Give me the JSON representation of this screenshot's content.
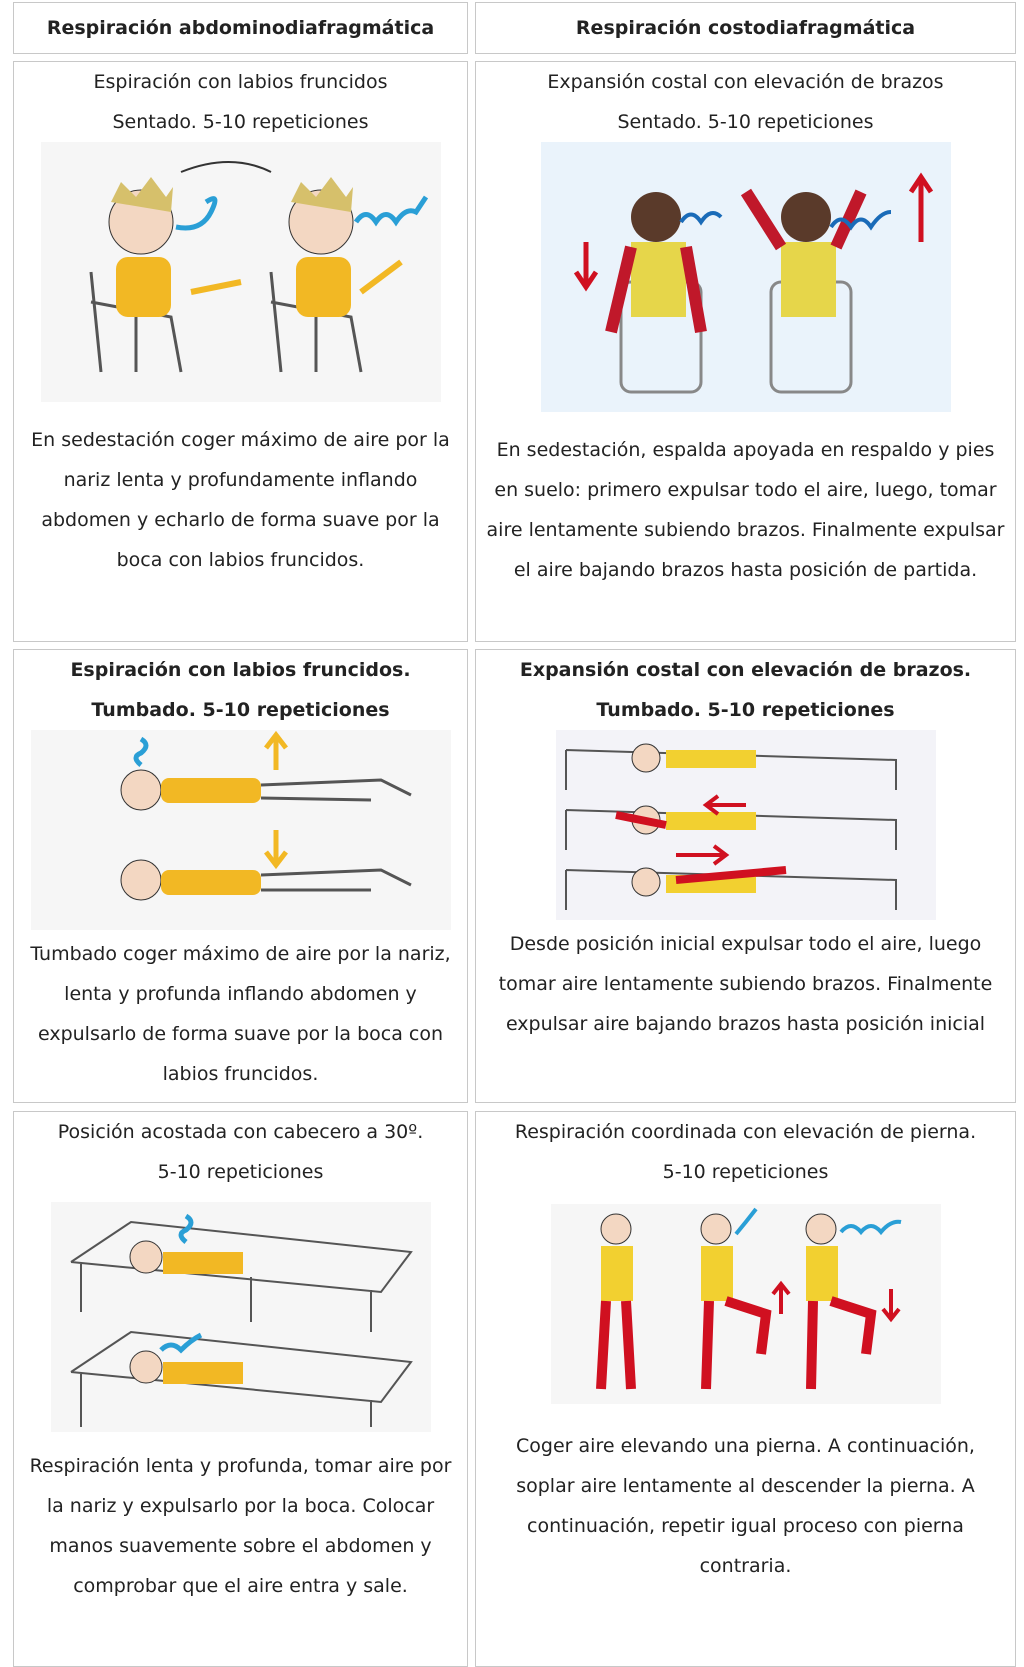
{
  "table": {
    "headers": [
      "Respiración abdominodiafragmática",
      "Respiración costodiafragmática"
    ],
    "rows": [
      [
        {
          "heading": [
            "Espiración con labios fruncidos",
            "Sentado. 5-10 repeticiones"
          ],
          "description": "En sedestación coger máximo de aire por la nariz lenta y profundamente inflando abdomen y echarlo de forma suave por la boca con labios fruncidos."
        },
        {
          "heading": [
            "Expansión costal con elevación de brazos",
            "Sentado. 5-10 repeticiones"
          ],
          "description": "En sedestación, espalda apoyada en respaldo y pies en suelo: primero expulsar todo el aire, luego, tomar aire lentamente subiendo brazos. Finalmente expulsar el aire bajando brazos hasta posición de partida."
        }
      ],
      [
        {
          "heading": [
            "Espiración con labios fruncidos.",
            "Tumbado. 5-10 repeticiones"
          ],
          "description": "Tumbado coger máximo de aire por la nariz, lenta y profunda inflando abdomen y expulsarlo de forma suave por la boca con labios fruncidos."
        },
        {
          "heading": [
            "Expansión costal con elevación de brazos.",
            "Tumbado. 5-10 repeticiones"
          ],
          "description": "Desde posición inicial expulsar todo el aire, luego tomar aire lentamente subiendo brazos. Finalmente expulsar aire bajando brazos hasta posición inicial"
        }
      ],
      [
        {
          "heading": [
            "Posición acostada con cabecero a 30º.",
            "5-10 repeticiones"
          ],
          "description": "Respiración lenta y profunda, tomar aire por la nariz y expulsarlo por la boca. Colocar manos suavemente sobre el abdomen y comprobar que el aire entra y sale."
        },
        {
          "heading": [
            "Respiración coordinada con elevación de pierna.",
            "5-10 repeticiones"
          ],
          "description": "Coger aire elevando una pierna.  A continuación, soplar aire lentamente al descender la pierna. A continuación, repetir igual proceso con pierna contraria."
        }
      ]
    ]
  }
}
